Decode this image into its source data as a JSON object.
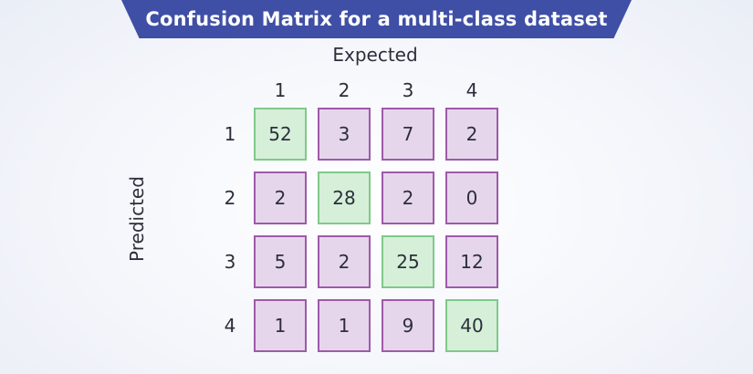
{
  "title": "Confusion Matrix for a multi-class dataset",
  "x_axis_title": "Expected",
  "y_axis_title": "Predicted",
  "colors": {
    "banner": "#3f4fa5",
    "diagonal_fill": "#d6efd9",
    "diagonal_border": "#7fc98a",
    "off_diagonal_fill": "#e6d6ec",
    "off_diagonal_border": "#9e5aa8"
  },
  "chart_data": {
    "type": "heatmap",
    "title": "Confusion Matrix for a multi-class dataset",
    "xlabel": "Expected",
    "ylabel": "Predicted",
    "x_categories": [
      "1",
      "2",
      "3",
      "4"
    ],
    "y_categories": [
      "1",
      "2",
      "3",
      "4"
    ],
    "matrix": [
      [
        52,
        3,
        7,
        2
      ],
      [
        2,
        28,
        2,
        0
      ],
      [
        5,
        2,
        25,
        12
      ],
      [
        1,
        1,
        9,
        40
      ]
    ]
  }
}
